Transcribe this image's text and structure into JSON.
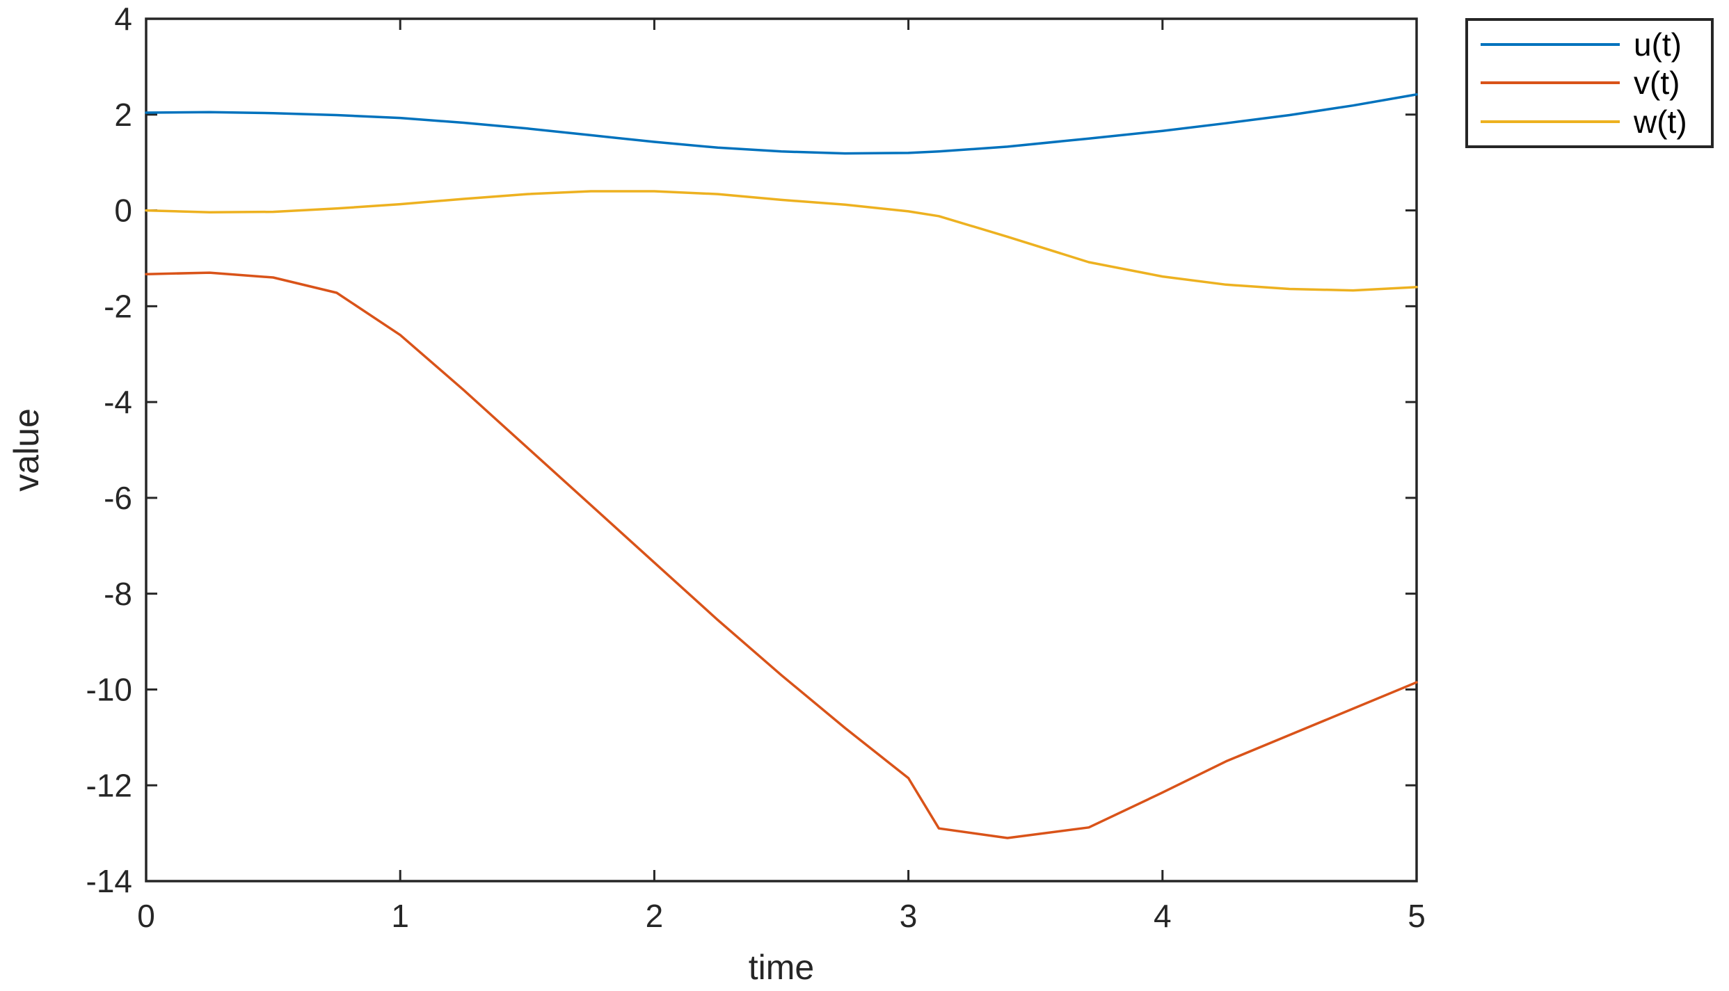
{
  "figure": {
    "background": "#ffffff",
    "axis_color": "#262626"
  },
  "chart_data": {
    "type": "line",
    "title": "",
    "xlabel": "time",
    "ylabel": "value",
    "xlim": [
      0,
      5
    ],
    "ylim": [
      -14,
      4
    ],
    "grid": false,
    "legend_position": "outside-top-right",
    "xticks": [
      0,
      1,
      2,
      3,
      4,
      5
    ],
    "xtick_labels": [
      "0",
      "1",
      "2",
      "3",
      "4",
      "5"
    ],
    "yticks": [
      4,
      2,
      0,
      -2,
      -4,
      -6,
      -8,
      -10,
      -12,
      -14
    ],
    "ytick_labels": [
      "4",
      "2",
      "0",
      "-2",
      "-4",
      "-6",
      "-8",
      "-10",
      "-12",
      "-14"
    ],
    "x": [
      0,
      0.25,
      0.5,
      0.75,
      1.0,
      1.25,
      1.5,
      1.75,
      2.0,
      2.25,
      2.5,
      2.75,
      3.0,
      3.12,
      3.39,
      3.71,
      4.0,
      4.25,
      4.5,
      4.75,
      5.0
    ],
    "series": [
      {
        "name": "u(t)",
        "color": "#0072BD",
        "values": [
          2.04,
          2.05,
          2.03,
          1.99,
          1.93,
          1.83,
          1.71,
          1.57,
          1.43,
          1.31,
          1.23,
          1.19,
          1.2,
          1.23,
          1.33,
          1.5,
          1.66,
          1.82,
          1.99,
          2.19,
          2.42
        ]
      },
      {
        "name": "v(t)",
        "color": "#D95319",
        "values": [
          -1.33,
          -1.3,
          -1.4,
          -1.72,
          -2.6,
          -3.75,
          -4.95,
          -6.15,
          -7.35,
          -8.55,
          -9.7,
          -10.8,
          -11.85,
          -12.9,
          -13.1,
          -12.88,
          -12.15,
          -11.5,
          -10.95,
          -10.4,
          -9.85
        ]
      },
      {
        "name": "w(t)",
        "color": "#EDB120",
        "values": [
          0.0,
          -0.04,
          -0.03,
          0.04,
          0.13,
          0.24,
          0.34,
          0.4,
          0.4,
          0.34,
          0.22,
          0.12,
          -0.02,
          -0.12,
          -0.55,
          -1.08,
          -1.38,
          -1.55,
          -1.64,
          -1.67,
          -1.6
        ]
      }
    ]
  }
}
